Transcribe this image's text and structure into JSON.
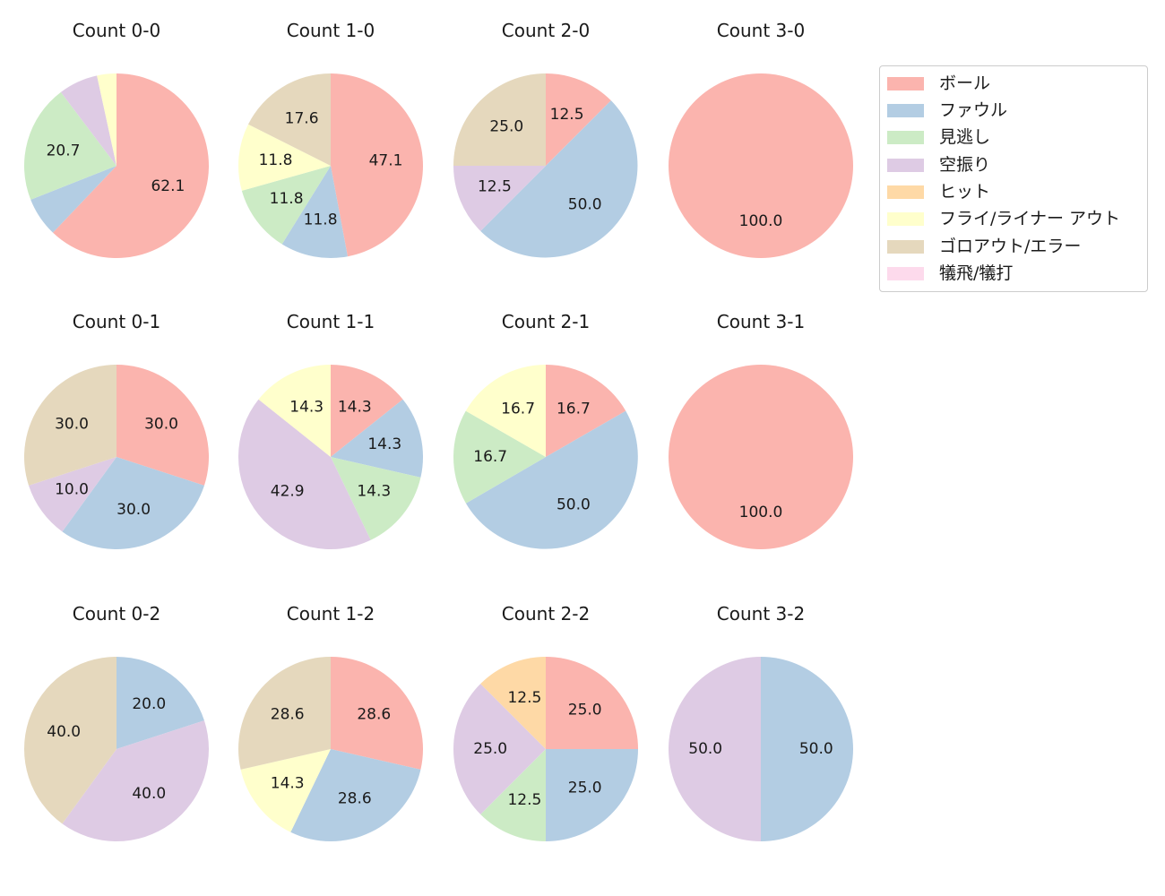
{
  "colors": {
    "ボール": "#fbb4ae",
    "ファウル": "#b3cde3",
    "見逃し": "#ccebc5",
    "空振り": "#decbe4",
    "ヒット": "#fed9a6",
    "フライ/ライナー アウト": "#ffffcc",
    "ゴロアウト/エラー": "#e5d8bd",
    "犠飛/犠打": "#fddaec"
  },
  "legend": {
    "entries": [
      {
        "label": "ボール",
        "color": "#fbb4ae"
      },
      {
        "label": "ファウル",
        "color": "#b3cde3"
      },
      {
        "label": "見逃し",
        "color": "#ccebc5"
      },
      {
        "label": "空振り",
        "color": "#decbe4"
      },
      {
        "label": "ヒット",
        "color": "#fed9a6"
      },
      {
        "label": "フライ/ライナー アウト",
        "color": "#ffffcc"
      },
      {
        "label": "ゴロアウト/エラー",
        "color": "#e5d8bd"
      },
      {
        "label": "犠飛/犠打",
        "color": "#fddaec"
      }
    ]
  },
  "chart_data": [
    {
      "type": "pie",
      "title": "Count 0-0",
      "start_angle_deg": 90,
      "direction": "clockwise",
      "label_distance": 0.6,
      "min_pct_labeled": 10,
      "slices": [
        {
          "category": "ボール",
          "value": 62.1,
          "label": "62.1"
        },
        {
          "category": "ファウル",
          "value": 6.9,
          "label": ""
        },
        {
          "category": "見逃し",
          "value": 20.7,
          "label": "20.7"
        },
        {
          "category": "空振り",
          "value": 6.9,
          "label": ""
        },
        {
          "category": "フライ/ライナー アウト",
          "value": 3.4,
          "label": ""
        }
      ]
    },
    {
      "type": "pie",
      "title": "Count 1-0",
      "start_angle_deg": 90,
      "direction": "clockwise",
      "label_distance": 0.6,
      "min_pct_labeled": 10,
      "slices": [
        {
          "category": "ボール",
          "value": 47.1,
          "label": "47.1"
        },
        {
          "category": "ファウル",
          "value": 11.8,
          "label": "11.8"
        },
        {
          "category": "見逃し",
          "value": 11.8,
          "label": "11.8"
        },
        {
          "category": "フライ/ライナー アウト",
          "value": 11.8,
          "label": "11.8"
        },
        {
          "category": "ゴロアウト/エラー",
          "value": 17.6,
          "label": "17.6"
        }
      ]
    },
    {
      "type": "pie",
      "title": "Count 2-0",
      "start_angle_deg": 90,
      "direction": "clockwise",
      "label_distance": 0.6,
      "min_pct_labeled": 10,
      "slices": [
        {
          "category": "ボール",
          "value": 12.5,
          "label": "12.5"
        },
        {
          "category": "ファウル",
          "value": 50.0,
          "label": "50.0"
        },
        {
          "category": "空振り",
          "value": 12.5,
          "label": "12.5"
        },
        {
          "category": "ゴロアウト/エラー",
          "value": 25.0,
          "label": "25.0"
        }
      ]
    },
    {
      "type": "pie",
      "title": "Count 3-0",
      "start_angle_deg": 90,
      "direction": "clockwise",
      "label_distance": 0.6,
      "min_pct_labeled": 10,
      "slices": [
        {
          "category": "ボール",
          "value": 100.0,
          "label": "100.0"
        }
      ]
    },
    {
      "type": "pie",
      "title": "Count 0-1",
      "start_angle_deg": 90,
      "direction": "clockwise",
      "label_distance": 0.6,
      "min_pct_labeled": 10,
      "slices": [
        {
          "category": "ボール",
          "value": 30.0,
          "label": "30.0"
        },
        {
          "category": "ファウル",
          "value": 30.0,
          "label": "30.0"
        },
        {
          "category": "空振り",
          "value": 10.0,
          "label": "10.0"
        },
        {
          "category": "ゴロアウト/エラー",
          "value": 30.0,
          "label": "30.0"
        }
      ]
    },
    {
      "type": "pie",
      "title": "Count 1-1",
      "start_angle_deg": 90,
      "direction": "clockwise",
      "label_distance": 0.6,
      "min_pct_labeled": 10,
      "slices": [
        {
          "category": "ボール",
          "value": 14.3,
          "label": "14.3"
        },
        {
          "category": "ファウル",
          "value": 14.3,
          "label": "14.3"
        },
        {
          "category": "見逃し",
          "value": 14.3,
          "label": "14.3"
        },
        {
          "category": "空振り",
          "value": 42.9,
          "label": "42.9"
        },
        {
          "category": "フライ/ライナー アウト",
          "value": 14.3,
          "label": "14.3"
        }
      ]
    },
    {
      "type": "pie",
      "title": "Count 2-1",
      "start_angle_deg": 90,
      "direction": "clockwise",
      "label_distance": 0.6,
      "min_pct_labeled": 10,
      "slices": [
        {
          "category": "ボール",
          "value": 16.7,
          "label": "16.7"
        },
        {
          "category": "ファウル",
          "value": 50.0,
          "label": "50.0"
        },
        {
          "category": "見逃し",
          "value": 16.7,
          "label": "16.7"
        },
        {
          "category": "フライ/ライナー アウト",
          "value": 16.7,
          "label": "16.7"
        }
      ]
    },
    {
      "type": "pie",
      "title": "Count 3-1",
      "start_angle_deg": 90,
      "direction": "clockwise",
      "label_distance": 0.6,
      "min_pct_labeled": 10,
      "slices": [
        {
          "category": "ボール",
          "value": 100.0,
          "label": "100.0"
        }
      ]
    },
    {
      "type": "pie",
      "title": "Count 0-2",
      "start_angle_deg": 90,
      "direction": "clockwise",
      "label_distance": 0.6,
      "min_pct_labeled": 10,
      "slices": [
        {
          "category": "ファウル",
          "value": 20.0,
          "label": "20.0"
        },
        {
          "category": "空振り",
          "value": 40.0,
          "label": "40.0"
        },
        {
          "category": "ゴロアウト/エラー",
          "value": 40.0,
          "label": "40.0"
        }
      ]
    },
    {
      "type": "pie",
      "title": "Count 1-2",
      "start_angle_deg": 90,
      "direction": "clockwise",
      "label_distance": 0.6,
      "min_pct_labeled": 10,
      "slices": [
        {
          "category": "ボール",
          "value": 28.6,
          "label": "28.6"
        },
        {
          "category": "ファウル",
          "value": 28.6,
          "label": "28.6"
        },
        {
          "category": "フライ/ライナー アウト",
          "value": 14.3,
          "label": "14.3"
        },
        {
          "category": "ゴロアウト/エラー",
          "value": 28.6,
          "label": "28.6"
        }
      ]
    },
    {
      "type": "pie",
      "title": "Count 2-2",
      "start_angle_deg": 90,
      "direction": "clockwise",
      "label_distance": 0.6,
      "min_pct_labeled": 10,
      "slices": [
        {
          "category": "ボール",
          "value": 25.0,
          "label": "25.0"
        },
        {
          "category": "ファウル",
          "value": 25.0,
          "label": "25.0"
        },
        {
          "category": "見逃し",
          "value": 12.5,
          "label": "12.5"
        },
        {
          "category": "空振り",
          "value": 25.0,
          "label": "25.0"
        },
        {
          "category": "ヒット",
          "value": 12.5,
          "label": "12.5"
        }
      ]
    },
    {
      "type": "pie",
      "title": "Count 3-2",
      "start_angle_deg": 90,
      "direction": "clockwise",
      "label_distance": 0.6,
      "min_pct_labeled": 10,
      "slices": [
        {
          "category": "ファウル",
          "value": 50.0,
          "label": "50.0"
        },
        {
          "category": "空振り",
          "value": 50.0,
          "label": "50.0"
        }
      ]
    }
  ]
}
